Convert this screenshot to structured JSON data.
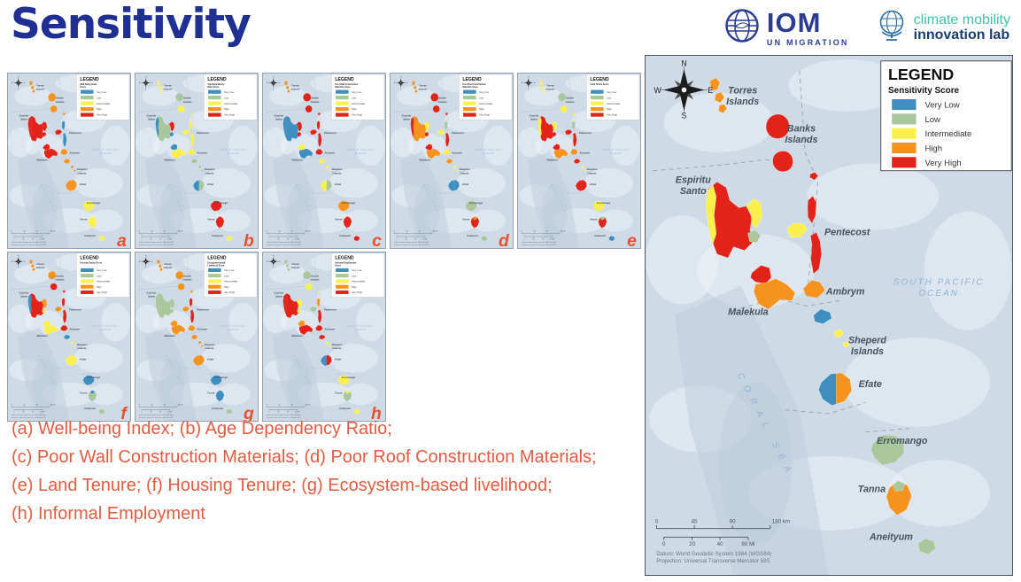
{
  "slide": {
    "title": "Sensitivity",
    "title_color": "#1F2F92",
    "background": "#FFFFFF"
  },
  "logos": {
    "iom": {
      "acronym": "IOM",
      "subtitle": "UN MIGRATION",
      "color": "#2A3C94"
    },
    "climate_mobility": {
      "line1": "climate mobility",
      "line2": "innovation lab",
      "line1_color": "#41BFAE",
      "line2_color": "#1C3E6E"
    }
  },
  "legend": {
    "title": "LEGEND",
    "subtitle": "Sensitivity Score",
    "items": [
      {
        "key": "vl",
        "label": "Very Low",
        "color": "#3E8FBF"
      },
      {
        "key": "lo",
        "label": "Low",
        "color": "#A9C79C"
      },
      {
        "key": "in",
        "label": "Intermediate",
        "color": "#F9F04E"
      },
      {
        "key": "hi",
        "label": "High",
        "color": "#F6921E"
      },
      {
        "key": "vh",
        "label": "Very High",
        "color": "#E2231A"
      }
    ]
  },
  "palette": {
    "vl": "#3E8FBF",
    "lo": "#A9C79C",
    "in": "#F9F04E",
    "hi": "#F6921E",
    "vh": "#E2231A"
  },
  "island_labels": {
    "torres": [
      "Torres",
      "Islands"
    ],
    "banks": [
      "Banks",
      "Islands"
    ],
    "espiritu": [
      "Espiritu",
      "Santo"
    ],
    "pentecost": [
      "Pentecost"
    ],
    "ambrym": [
      "Ambrym"
    ],
    "malekula": [
      "Malekula"
    ],
    "sheperd": [
      "Sheperd",
      "Islands"
    ],
    "efate": [
      "Efate"
    ],
    "erromango": [
      "Erromango"
    ],
    "tanna": [
      "Tanna"
    ],
    "aneityum": [
      "Aneityum"
    ]
  },
  "ocean_labels": {
    "south_pacific": [
      "SOUTH PACIFIC",
      "OCEAN"
    ],
    "coral_sea": "CORAL SEA"
  },
  "compass_letters": [
    "N",
    "E",
    "S",
    "W"
  ],
  "scale": {
    "km_labels": [
      "0",
      "45",
      "90",
      "180 km"
    ],
    "mi_labels": [
      "0",
      "20",
      "40",
      "80 Mi"
    ],
    "datum_line1": "Datum: World Geodetic System 1984 (WGS84)",
    "datum_line2": "Projection: Universal Transverse Mercator 59S"
  },
  "caption": {
    "color": "#E15C43",
    "lines": [
      "(a) Well-being Index; (b) Age Dependency Ratio;",
      "(c) Poor Wall Construction Materials; (d) Poor Roof Construction Materials;",
      "(e) Land Tenure; (f) Housing Tenure; (g) Ecosystem-based livelihood;",
      "(h) Informal Employment"
    ]
  },
  "large_map": {
    "colors": {
      "torres": "hi",
      "banks1": "vh",
      "banks2": "vh",
      "banks3": "vh",
      "santo": "vh",
      "santo_w": "in",
      "santo_e": "in",
      "santo_se": "lo",
      "maewo": "vh",
      "ambae": "in",
      "pentecost": "vh",
      "malekula": "vh",
      "malekula_s": "hi",
      "ambrym": "hi",
      "epi": "vl",
      "shepherd": "in",
      "efate": "vl",
      "efate_e": "hi",
      "erromango": "lo",
      "tanna": "hi",
      "tanna_n": "lo",
      "aneityum": "lo"
    }
  },
  "small_maps": [
    {
      "letter": "a",
      "legend_subtitle_lines": [
        "Well-Being Index",
        "Score"
      ],
      "colors": {
        "torres": "hi",
        "banks1": "hi",
        "banks2": "hi",
        "banks3": "hi",
        "santo": "vh",
        "santo_w": "vh",
        "santo_e": "vh",
        "santo_se": "vh",
        "maewo": "vl",
        "ambae": "vh",
        "pentecost": "vl",
        "malekula": "vh",
        "malekula_s": "vh",
        "ambrym": "hi",
        "epi": "hi",
        "shepherd": "hi",
        "efate": "hi",
        "efate_e": "hi",
        "erromango": "in",
        "tanna": "in",
        "tanna_n": "in",
        "aneityum": "in"
      }
    },
    {
      "letter": "b",
      "legend_subtitle_lines": [
        "Age Dependency",
        "Ratio Score"
      ],
      "colors": {
        "torres": "in",
        "banks1": "lo",
        "banks2": "in",
        "banks3": "in",
        "santo": "lo",
        "santo_w": "vl",
        "santo_e": "vh",
        "santo_se": "vl",
        "maewo": "in",
        "ambae": "in",
        "pentecost": "in",
        "malekula": "vl",
        "malekula_s": "in",
        "ambrym": "in",
        "epi": "lo",
        "shepherd": "lo",
        "efate": "vl",
        "efate_e": "lo",
        "erromango": "vh",
        "tanna": "vh",
        "tanna_n": "vh",
        "aneityum": "in"
      }
    },
    {
      "letter": "c",
      "legend_subtitle_lines": [
        "Poor Wall Construction",
        "Materials Score"
      ],
      "colors": {
        "torres": "hi",
        "banks1": "vh",
        "banks2": "vh",
        "banks3": "vh",
        "santo": "vl",
        "santo_w": "vl",
        "santo_e": "vh",
        "santo_se": "vh",
        "maewo": "vh",
        "ambae": "vh",
        "pentecost": "vh",
        "malekula": "in",
        "malekula_s": "vl",
        "ambrym": "vh",
        "epi": "in",
        "shepherd": "in",
        "efate": "in",
        "efate_e": "lo",
        "erromango": "hi",
        "tanna": "vh",
        "tanna_n": "vh",
        "aneityum": "vh"
      }
    },
    {
      "letter": "d",
      "legend_subtitle_lines": [
        "Poor Roof Construction",
        "Materials Score"
      ],
      "colors": {
        "torres": "hi",
        "banks1": "vh",
        "banks2": "vh",
        "banks3": "vh",
        "santo": "hi",
        "santo_w": "vh",
        "santo_e": "in",
        "santo_se": "vh",
        "maewo": "lo",
        "ambae": "in",
        "pentecost": "vh",
        "malekula": "vh",
        "malekula_s": "hi",
        "ambrym": "in",
        "epi": "hi",
        "shepherd": "in",
        "efate": "vl",
        "efate_e": "vl",
        "erromango": "lo",
        "tanna": "vh",
        "tanna_n": "hi",
        "aneityum": "lo"
      }
    },
    {
      "letter": "e",
      "legend_subtitle_lines": [
        "Land Tenure Score"
      ],
      "colors": {
        "torres": "in",
        "banks1": "lo",
        "banks2": "in",
        "banks3": "in",
        "santo": "vh",
        "santo_w": "in",
        "santo_e": "in",
        "santo_se": "vh",
        "maewo": "lo",
        "ambae": "vh",
        "pentecost": "vh",
        "malekula": "vh",
        "malekula_s": "hi",
        "ambrym": "hi",
        "epi": "vh",
        "shepherd": "in",
        "efate": "vh",
        "efate_e": "vh",
        "erromango": "in",
        "tanna": "vh",
        "tanna_n": "lo",
        "aneityum": "vl"
      }
    },
    {
      "letter": "f",
      "legend_subtitle_lines": [
        "Housing Tenure Score"
      ],
      "colors": {
        "torres": "hi",
        "banks1": "hi",
        "banks2": "vh",
        "banks3": "vh",
        "santo": "vh",
        "santo_w": "vl",
        "santo_e": "hi",
        "santo_se": "in",
        "maewo": "vh",
        "ambae": "hi",
        "pentecost": "vh",
        "malekula": "in",
        "malekula_s": "in",
        "ambrym": "vh",
        "epi": "vl",
        "shepherd": "in",
        "efate": "in",
        "efate_e": "in",
        "erromango": "vl",
        "tanna": "lo",
        "tanna_n": "vl",
        "aneityum": "lo"
      }
    },
    {
      "letter": "g",
      "legend_subtitle_lines": [
        "Ecosystem-based",
        "Livelihood Score"
      ],
      "colors": {
        "torres": "hi",
        "banks1": "hi",
        "banks2": "hi",
        "banks3": "hi",
        "santo": "lo",
        "santo_w": "lo",
        "santo_e": "lo",
        "santo_se": "lo",
        "maewo": "vh",
        "ambae": "hi",
        "pentecost": "vh",
        "malekula": "hi",
        "malekula_s": "hi",
        "ambrym": "hi",
        "epi": "hi",
        "shepherd": "hi",
        "efate": "hi",
        "efate_e": "hi",
        "erromango": "vl",
        "tanna": "vl",
        "tanna_n": "vl",
        "aneityum": "lo"
      }
    },
    {
      "letter": "h",
      "legend_subtitle_lines": [
        "Informal Employment",
        "Score"
      ],
      "colors": {
        "torres": "lo",
        "banks1": "lo",
        "banks2": "in",
        "banks3": "in",
        "santo": "vh",
        "santo_w": "vh",
        "santo_e": "in",
        "santo_se": "in",
        "maewo": "hi",
        "ambae": "lo",
        "pentecost": "vh",
        "malekula": "hi",
        "malekula_s": "vh",
        "ambrym": "vh",
        "epi": "vh",
        "shepherd": "in",
        "efate": "vl",
        "efate_e": "vh",
        "erromango": "in",
        "tanna": "lo",
        "tanna_n": "in",
        "aneityum": "in"
      }
    }
  ]
}
